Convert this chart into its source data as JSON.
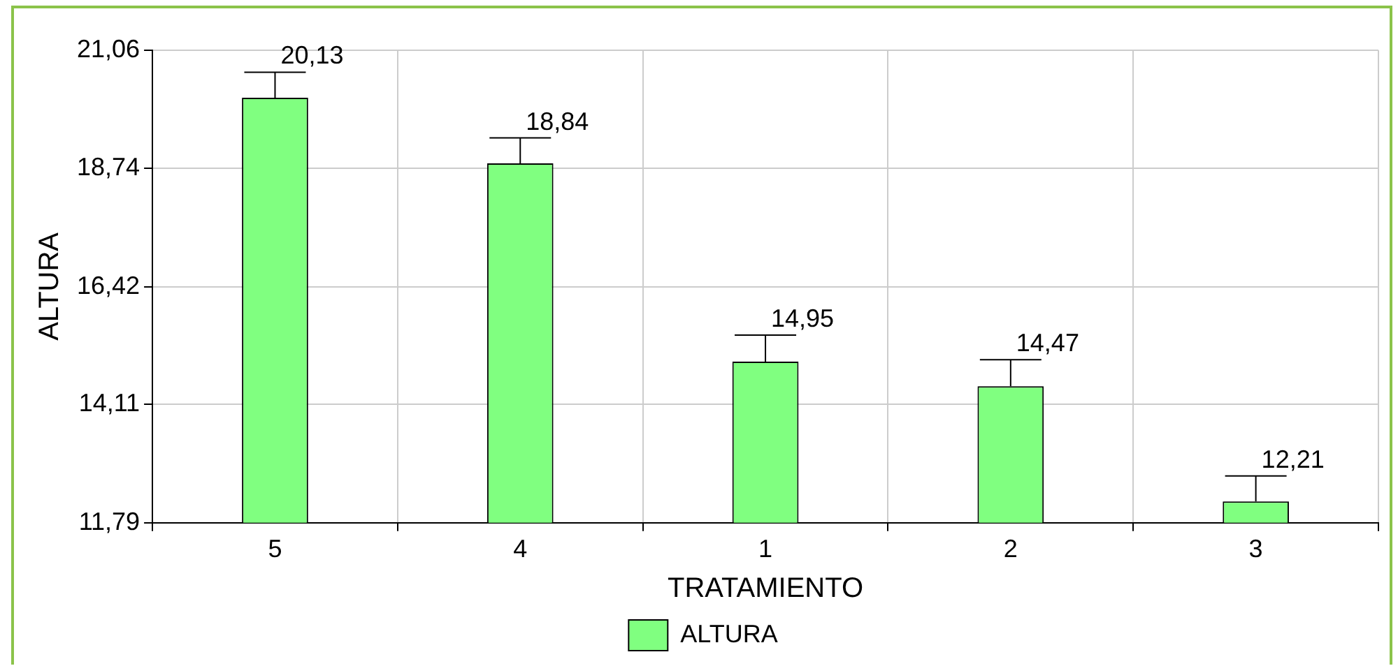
{
  "chart_data": {
    "type": "bar",
    "xlabel": "TRATAMIENTO",
    "ylabel": "ALTURA",
    "categories": [
      "5",
      "4",
      "1",
      "2",
      "3"
    ],
    "series": [
      {
        "name": "ALTURA",
        "color": "#80ff80",
        "values": [
          20.13,
          18.84,
          14.95,
          14.47,
          12.21
        ],
        "errors": [
          [
            20.13,
            20.63
          ],
          [
            18.84,
            19.34
          ],
          [
            14.95,
            15.47
          ],
          [
            14.47,
            14.99
          ],
          [
            12.21,
            12.71
          ]
        ],
        "value_labels": [
          "20,13",
          "18,84",
          "14,95",
          "14,47",
          "12,21"
        ]
      }
    ],
    "ylim": [
      11.79,
      21.06
    ],
    "yticks": [
      {
        "value": 11.79,
        "label": "11,79"
      },
      {
        "value": 14.11,
        "label": "14,11"
      },
      {
        "value": 16.42,
        "label": "16,42"
      },
      {
        "value": 18.74,
        "label": "18,74"
      },
      {
        "value": 21.06,
        "label": "21,06"
      }
    ],
    "grid": true,
    "legend": "bottom"
  }
}
